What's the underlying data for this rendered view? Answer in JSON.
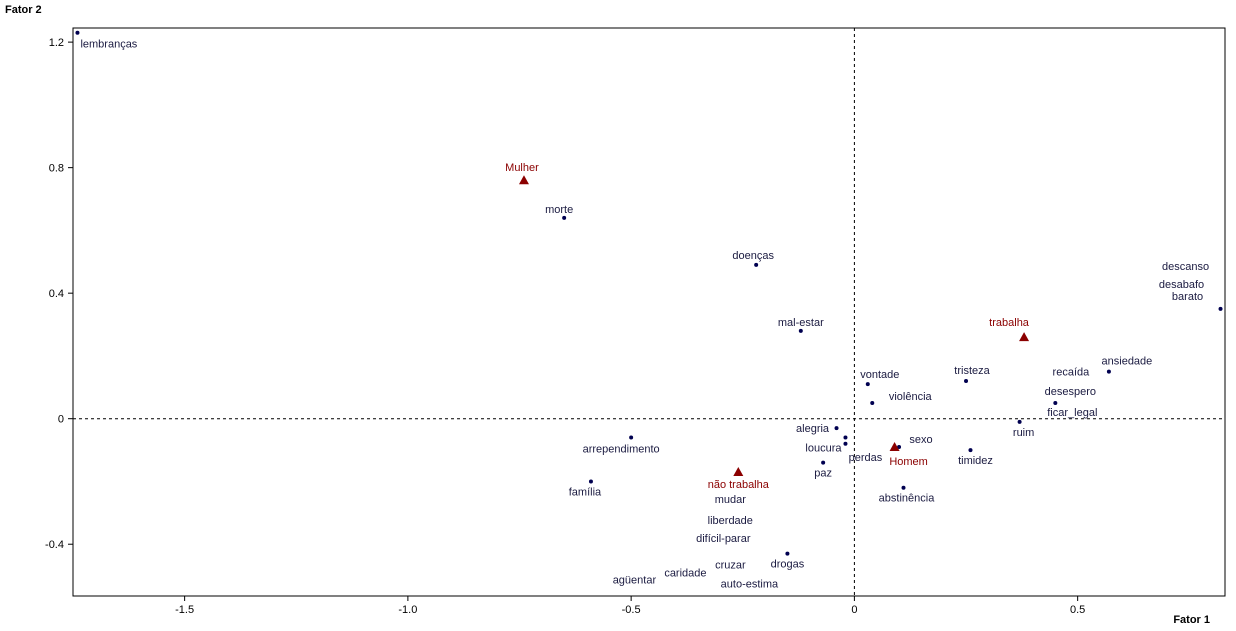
{
  "chart_data": {
    "type": "scatter",
    "title": "",
    "xlabel": "Fator 1",
    "ylabel": "Fator 2",
    "xlim": [
      -1.75,
      0.83
    ],
    "ylim": [
      -0.565,
      1.245
    ],
    "x_ticks": [
      -1.5,
      -1.0,
      -0.5,
      0,
      0.5
    ],
    "x_tick_labels": [
      "-1.5",
      "-1.0",
      "-0.5",
      "0",
      "0.5"
    ],
    "y_ticks": [
      -0.4,
      0,
      0.4,
      0.8,
      1.2
    ],
    "y_tick_labels": [
      "-0.4",
      "0",
      "0.4",
      "0.8",
      "1.2"
    ],
    "reference_lines": {
      "x": 0,
      "y": 0,
      "style": "dashed"
    },
    "grid": false,
    "colors": {
      "words": "#000050",
      "supplementary": "#8b0000"
    },
    "words": [
      {
        "label": "lembranças",
        "x": -1.74,
        "y": 1.23
      },
      {
        "label": "morte",
        "x": -0.65,
        "y": 0.64
      },
      {
        "label": "doenças",
        "x": -0.22,
        "y": 0.49
      },
      {
        "label": "mal-estar",
        "x": -0.12,
        "y": 0.28
      },
      {
        "label": "vontade",
        "x": 0.03,
        "y": 0.11
      },
      {
        "label": "violência",
        "x": 0.04,
        "y": 0.05
      },
      {
        "label": "tristeza",
        "x": 0.25,
        "y": 0.12
      },
      {
        "label": "ansiedade",
        "x": 0.57,
        "y": 0.15
      },
      {
        "label": "recaída",
        "x": 0.57,
        "y": 0.15
      },
      {
        "label": "ficar_legal",
        "x": 0.45,
        "y": 0.05
      },
      {
        "label": "desespero",
        "x": 0.45,
        "y": 0.05
      },
      {
        "label": "descanso",
        "x": 0.82,
        "y": 0.35
      },
      {
        "label": "desabafo",
        "x": 0.82,
        "y": 0.35
      },
      {
        "label": "barato",
        "x": 0.82,
        "y": 0.35
      },
      {
        "label": "ruim",
        "x": 0.37,
        "y": -0.01
      },
      {
        "label": "timidez",
        "x": 0.26,
        "y": -0.1
      },
      {
        "label": "sexo",
        "x": 0.1,
        "y": -0.09
      },
      {
        "label": "abstinência",
        "x": 0.11,
        "y": -0.22
      },
      {
        "label": "alegria",
        "x": -0.04,
        "y": -0.03
      },
      {
        "label": "loucura",
        "x": -0.02,
        "y": -0.06
      },
      {
        "label": "perdas",
        "x": -0.02,
        "y": -0.08
      },
      {
        "label": "paz",
        "x": -0.07,
        "y": -0.14
      },
      {
        "label": "arrependimento",
        "x": -0.5,
        "y": -0.06
      },
      {
        "label": "família",
        "x": -0.59,
        "y": -0.2
      },
      {
        "label": "mudar",
        "x": -0.26,
        "y": -0.17
      },
      {
        "label": "liberdade",
        "x": -0.26,
        "y": -0.17
      },
      {
        "label": "difícil-parar",
        "x": -0.26,
        "y": -0.17
      },
      {
        "label": "drogas",
        "x": -0.15,
        "y": -0.43
      },
      {
        "label": "cruzar",
        "x": -0.15,
        "y": -0.43
      },
      {
        "label": "auto-estima",
        "x": -0.15,
        "y": -0.43
      },
      {
        "label": "caridade",
        "x": -0.15,
        "y": -0.43
      },
      {
        "label": "agüentar",
        "x": -0.15,
        "y": -0.43
      }
    ],
    "supplementary": [
      {
        "label": "Mulher",
        "x": -0.74,
        "y": 0.76
      },
      {
        "label": "trabalha",
        "x": 0.38,
        "y": 0.26
      },
      {
        "label": "Homem",
        "x": 0.09,
        "y": -0.09
      },
      {
        "label": "não trabalha",
        "x": -0.26,
        "y": -0.17
      }
    ]
  }
}
